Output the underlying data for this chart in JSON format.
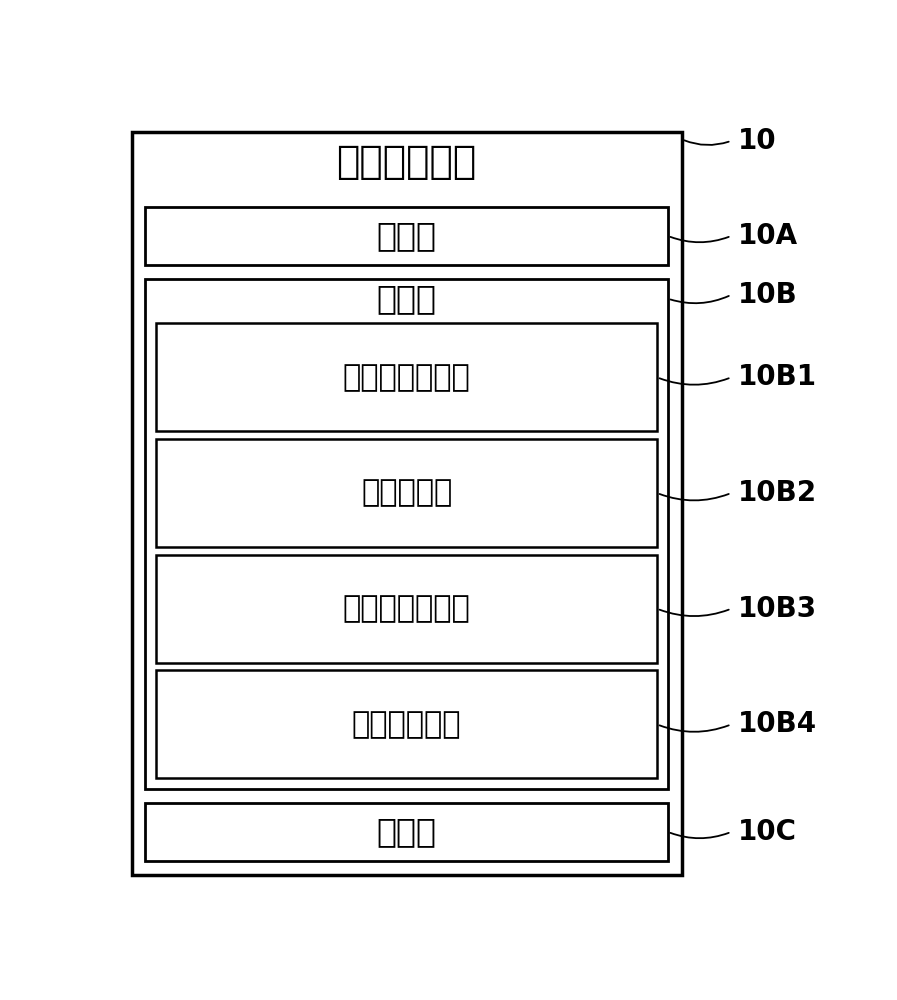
{
  "bg_color": "#ffffff",
  "outer_label": "血压控制设备",
  "outer_id": "10",
  "blocks": [
    {
      "label": "获取部",
      "id": "10A",
      "type": "single"
    },
    {
      "label": "产生部",
      "id": "10B",
      "type": "container"
    },
    {
      "label": "刺激频率计算部",
      "id": "10B1",
      "type": "sub"
    },
    {
      "label": "增益调节部",
      "id": "10B2",
      "type": "sub"
    },
    {
      "label": "参考压力调节部",
      "id": "10B3",
      "type": "sub"
    },
    {
      "label": "初始值设定部",
      "id": "10B4",
      "type": "sub"
    },
    {
      "label": "供应部",
      "id": "10C",
      "type": "single"
    }
  ],
  "font_size_title": 28,
  "font_size_label": 24,
  "font_size_sub": 22,
  "font_size_id": 20
}
